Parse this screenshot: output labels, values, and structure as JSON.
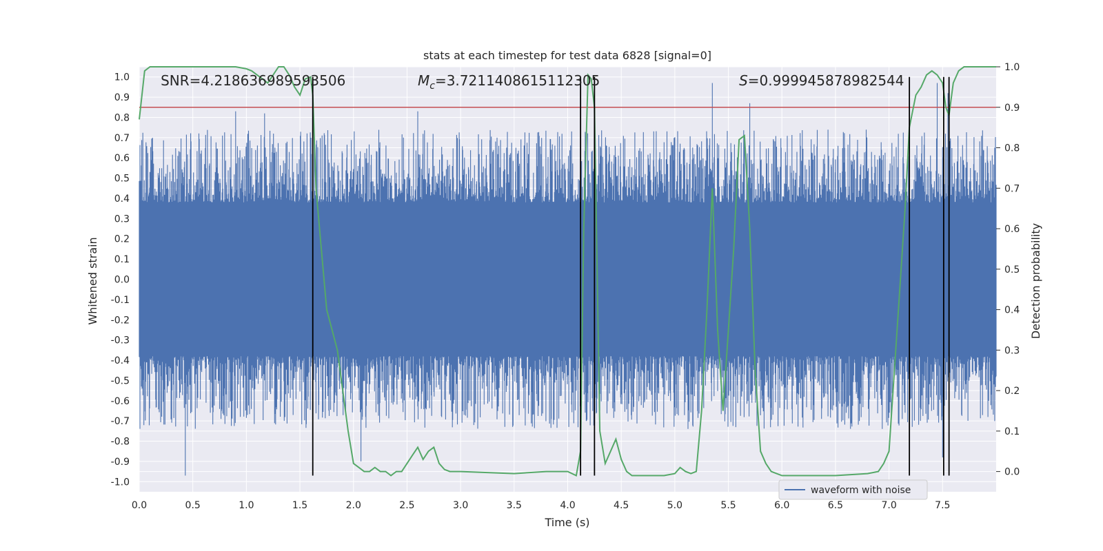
{
  "chart_data": {
    "type": "line",
    "title": "stats at each timestep for test data 6828 [signal=0]",
    "xlabel": "Time (s)",
    "ylabel_left": "Whitened strain",
    "ylabel_right": "Detection probability",
    "xlim": [
      0.0,
      8.0
    ],
    "ylim_left": [
      -1.05,
      1.05
    ],
    "ylim_right": [
      -0.05,
      1.0
    ],
    "x_ticks": [
      "0.0",
      "0.5",
      "1.0",
      "1.5",
      "2.0",
      "2.5",
      "3.0",
      "3.5",
      "4.0",
      "4.5",
      "5.0",
      "5.5",
      "6.0",
      "6.5",
      "7.0",
      "7.5"
    ],
    "y_ticks_left": [
      "-1.0",
      "-0.9",
      "-0.8",
      "-0.7",
      "-0.6",
      "-0.5",
      "-0.4",
      "-0.3",
      "-0.2",
      "-0.1",
      "0.0",
      "0.1",
      "0.2",
      "0.3",
      "0.4",
      "0.5",
      "0.6",
      "0.7",
      "0.8",
      "0.9",
      "1.0"
    ],
    "y_ticks_right": [
      "0.0",
      "0.1",
      "0.2",
      "0.3",
      "0.4",
      "0.5",
      "0.6",
      "0.7",
      "0.8",
      "0.9",
      "1.0"
    ],
    "threshold": {
      "value": 0.9,
      "color": "#c44e52"
    },
    "annotations": [
      {
        "prefix": "SNR",
        "subscript": "",
        "italic": false,
        "value": "=4.218636989593506",
        "x": 0.2
      },
      {
        "prefix": "M",
        "subscript": "c",
        "italic": true,
        "value": "=3.7211408615112305",
        "x": 2.6
      },
      {
        "prefix": "S",
        "subscript": "",
        "italic": true,
        "value": "=0.999945878982544",
        "x": 5.6
      }
    ],
    "vlines": [
      1.62,
      4.12,
      4.25,
      7.19,
      7.51,
      7.56
    ],
    "vline_color": "#000000",
    "waveform": {
      "name": "waveform with noise",
      "color": "#4c72b0",
      "core_amplitude": 0.38,
      "spikes": [
        {
          "x": 0.43,
          "y": -0.97
        },
        {
          "x": 0.9,
          "y": 0.83
        },
        {
          "x": 1.17,
          "y": 0.82
        },
        {
          "x": 2.6,
          "y": 0.83
        },
        {
          "x": 2.07,
          "y": -0.9
        },
        {
          "x": 5.35,
          "y": 0.97
        },
        {
          "x": 5.7,
          "y": 0.87
        },
        {
          "x": 7.45,
          "y": 0.97
        },
        {
          "x": 7.5,
          "y": -0.88
        },
        {
          "x": 7.55,
          "y": 0.92
        }
      ]
    },
    "probability": {
      "name": "detection probability",
      "color": "#55a868",
      "x": [
        0.0,
        0.05,
        0.1,
        0.15,
        0.5,
        0.9,
        1.0,
        1.05,
        1.1,
        1.15,
        1.2,
        1.25,
        1.3,
        1.35,
        1.4,
        1.45,
        1.5,
        1.55,
        1.6,
        1.62,
        1.65,
        1.7,
        1.75,
        1.8,
        1.85,
        1.9,
        1.95,
        2.0,
        2.05,
        2.1,
        2.15,
        2.2,
        2.25,
        2.3,
        2.35,
        2.4,
        2.45,
        2.5,
        2.55,
        2.6,
        2.65,
        2.7,
        2.75,
        2.8,
        2.85,
        2.9,
        3.0,
        3.5,
        3.8,
        4.0,
        4.08,
        4.12,
        4.15,
        4.19,
        4.22,
        4.25,
        4.3,
        4.35,
        4.4,
        4.45,
        4.5,
        4.55,
        4.6,
        4.7,
        4.9,
        5.0,
        5.05,
        5.1,
        5.15,
        5.2,
        5.25,
        5.3,
        5.35,
        5.4,
        5.45,
        5.5,
        5.55,
        5.6,
        5.65,
        5.7,
        5.75,
        5.8,
        5.85,
        5.9,
        5.95,
        6.0,
        6.05,
        6.5,
        6.8,
        6.9,
        6.95,
        7.0,
        7.05,
        7.1,
        7.15,
        7.19,
        7.25,
        7.3,
        7.35,
        7.4,
        7.45,
        7.5,
        7.53,
        7.56,
        7.6,
        7.65,
        7.7,
        7.75,
        7.8,
        8.0
      ],
      "y": [
        0.87,
        0.99,
        1.0,
        1.0,
        1.0,
        1.0,
        0.995,
        0.99,
        0.98,
        0.97,
        0.96,
        0.98,
        1.0,
        1.0,
        0.98,
        0.95,
        0.93,
        0.97,
        0.975,
        0.93,
        0.7,
        0.55,
        0.4,
        0.35,
        0.3,
        0.2,
        0.1,
        0.02,
        0.01,
        0.0,
        0.0,
        0.01,
        0.0,
        0.0,
        -0.01,
        0.0,
        0.0,
        0.02,
        0.04,
        0.06,
        0.03,
        0.05,
        0.06,
        0.02,
        0.005,
        0.0,
        0.0,
        -0.005,
        0.0,
        0.0,
        -0.01,
        0.05,
        0.6,
        0.98,
        0.97,
        0.9,
        0.1,
        0.02,
        0.05,
        0.08,
        0.03,
        0.0,
        -0.01,
        -0.01,
        -0.01,
        -0.005,
        0.01,
        0.0,
        -0.005,
        0.0,
        0.15,
        0.4,
        0.7,
        0.35,
        0.15,
        0.35,
        0.55,
        0.82,
        0.83,
        0.6,
        0.25,
        0.05,
        0.02,
        0.0,
        -0.005,
        -0.01,
        -0.01,
        -0.01,
        -0.005,
        0.0,
        0.02,
        0.05,
        0.25,
        0.45,
        0.65,
        0.85,
        0.93,
        0.95,
        0.98,
        0.99,
        0.98,
        0.96,
        0.9,
        0.88,
        0.96,
        0.99,
        1.0,
        1.0,
        1.0,
        1.0
      ]
    }
  },
  "legend": {
    "label": "waveform with noise"
  }
}
